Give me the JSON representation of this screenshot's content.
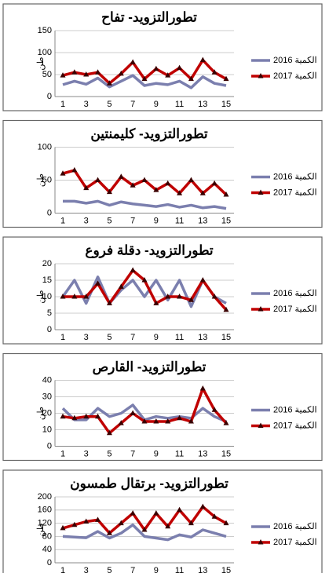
{
  "chart_data": [
    {
      "type": "line",
      "title": "تطورالتزويد- تفاح",
      "ylabel": "طن",
      "categories": [
        "1",
        null,
        "3",
        null,
        "5",
        null,
        "7",
        null,
        "9",
        null,
        "11",
        null,
        "13",
        null,
        "15"
      ],
      "series": [
        {
          "name": "الكمية 2016",
          "color": "#7b7fae",
          "values": [
            27,
            35,
            28,
            42,
            22,
            35,
            48,
            25,
            30,
            27,
            35,
            20,
            45,
            30,
            25
          ]
        },
        {
          "name": "الكمية 2017",
          "color": "#c00000",
          "marker": "triangle",
          "values": [
            48,
            55,
            50,
            55,
            30,
            52,
            78,
            40,
            63,
            48,
            65,
            40,
            83,
            55,
            40
          ]
        }
      ],
      "ylim": [
        0,
        150
      ],
      "yticks": [
        0,
        50,
        100,
        150
      ],
      "grid": true
    },
    {
      "type": "line",
      "title": "تطورالتزويد- كليمنتين",
      "ylabel": "طن",
      "categories": [
        "1",
        null,
        "3",
        null,
        "5",
        null,
        "7",
        null,
        "9",
        null,
        "11",
        null,
        "13",
        null,
        "15"
      ],
      "series": [
        {
          "name": "الكمية 2016",
          "color": "#7b7fae",
          "values": [
            18,
            18,
            15,
            18,
            12,
            17,
            14,
            12,
            10,
            13,
            9,
            12,
            8,
            10,
            7
          ]
        },
        {
          "name": "الكمية 2017",
          "color": "#c00000",
          "marker": "triangle",
          "values": [
            60,
            65,
            38,
            50,
            32,
            55,
            42,
            50,
            35,
            45,
            30,
            50,
            30,
            45,
            28
          ]
        }
      ],
      "ylim": [
        0,
        100
      ],
      "yticks": [
        0,
        50,
        100
      ],
      "grid": true
    },
    {
      "type": "line",
      "title": "تطورالتزويد- دقلة فروع",
      "ylabel": "طن",
      "categories": [
        "1",
        null,
        "3",
        null,
        "5",
        null,
        "7",
        null,
        "9",
        null,
        "11",
        null,
        "13",
        null,
        "15"
      ],
      "series": [
        {
          "name": "الكمية 2016",
          "color": "#7b7fae",
          "values": [
            10,
            15,
            8,
            16,
            8,
            12,
            15,
            10,
            15,
            9,
            15,
            7,
            15,
            10,
            8
          ]
        },
        {
          "name": "الكمية 2017",
          "color": "#c00000",
          "marker": "triangle",
          "values": [
            10,
            10,
            10,
            14,
            8,
            13,
            18,
            15,
            8,
            10,
            10,
            9,
            15,
            10,
            6
          ]
        }
      ],
      "ylim": [
        0,
        20
      ],
      "yticks": [
        0,
        5,
        10,
        15,
        20
      ],
      "grid": true
    },
    {
      "type": "line",
      "title": "تطورالتزويد- القارص",
      "ylabel": "طن",
      "categories": [
        "1",
        null,
        "3",
        null,
        "5",
        null,
        "7",
        null,
        "9",
        null,
        "11",
        null,
        "13",
        null,
        "15"
      ],
      "series": [
        {
          "name": "الكمية 2016",
          "color": "#7b7fae",
          "values": [
            23,
            16,
            16,
            23,
            18,
            20,
            25,
            16,
            18,
            17,
            18,
            17,
            23,
            18,
            15
          ]
        },
        {
          "name": "الكمية 2017",
          "color": "#c00000",
          "marker": "triangle",
          "values": [
            18,
            17,
            18,
            18,
            8,
            14,
            20,
            15,
            15,
            15,
            17,
            15,
            35,
            22,
            14
          ]
        }
      ],
      "ylim": [
        0,
        40
      ],
      "yticks": [
        0,
        10,
        20,
        30,
        40
      ],
      "grid": true
    },
    {
      "type": "line",
      "title": "تطورالتزويد- برتقال طمسون",
      "ylabel": "طن",
      "categories": [
        "1",
        null,
        "3",
        null,
        "5",
        null,
        "7",
        null,
        "9",
        null,
        "11",
        null,
        "13",
        null,
        "15"
      ],
      "series": [
        {
          "name": "الكمية 2016",
          "color": "#7b7fae",
          "values": [
            80,
            78,
            76,
            95,
            75,
            90,
            115,
            80,
            75,
            70,
            85,
            78,
            100,
            90,
            80
          ]
        },
        {
          "name": "الكمية 2017",
          "color": "#c00000",
          "marker": "triangle",
          "values": [
            105,
            115,
            125,
            130,
            90,
            120,
            150,
            100,
            150,
            110,
            160,
            120,
            170,
            140,
            120
          ]
        }
      ],
      "ylim": [
        0,
        200
      ],
      "yticks": [
        0,
        40,
        80,
        120,
        160,
        200
      ],
      "grid": true
    }
  ]
}
